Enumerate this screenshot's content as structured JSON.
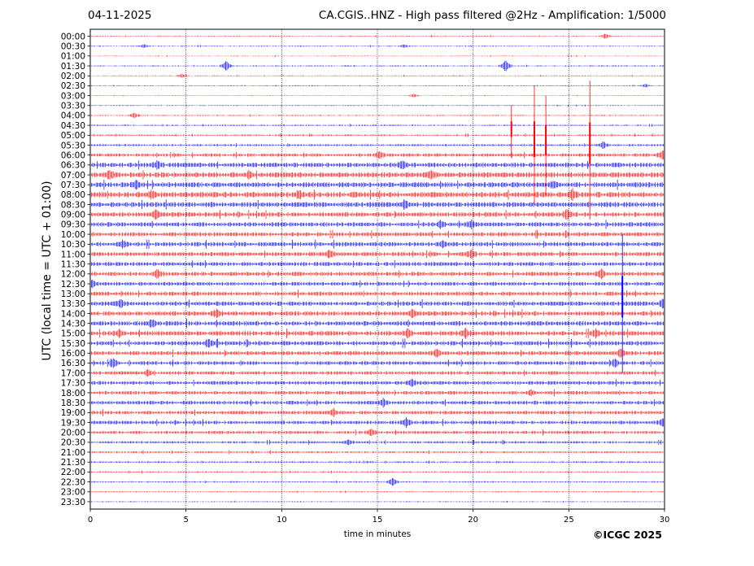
{
  "header": {
    "date": "04-11-2025",
    "title": "CA.CGIS..HNZ - High pass filtered @2Hz - Amplification: 1/5000"
  },
  "copyright": "©ICGC 2025",
  "chart_data": {
    "type": "line",
    "title": "CA.CGIS..HNZ - High pass filtered @2Hz - Amplification: 1/5000",
    "xlabel": "time in minutes",
    "ylabel": "UTC (local time = UTC + 01:00)",
    "xlim": [
      0,
      30
    ],
    "x_ticks": [
      0,
      5,
      10,
      15,
      20,
      25,
      30
    ],
    "y_ticks": [
      "00:00",
      "00:30",
      "01:00",
      "01:30",
      "02:00",
      "02:30",
      "03:00",
      "03:30",
      "04:00",
      "04:30",
      "05:00",
      "05:30",
      "06:00",
      "06:30",
      "07:00",
      "07:30",
      "08:00",
      "08:30",
      "09:00",
      "09:30",
      "10:00",
      "10:30",
      "11:00",
      "11:30",
      "12:00",
      "12:30",
      "13:00",
      "13:30",
      "14:00",
      "14:30",
      "15:00",
      "15:30",
      "16:00",
      "16:30",
      "17:00",
      "17:30",
      "18:00",
      "18:30",
      "19:00",
      "19:30",
      "20:00",
      "20:30",
      "21:00",
      "21:30",
      "22:00",
      "22:30",
      "23:00",
      "23:30"
    ],
    "grid_x": [
      5,
      10,
      15,
      20,
      25
    ],
    "colors": {
      "even_hour": "#ff0000",
      "half_hour": "#0000ff"
    },
    "noise_by_row": [
      0.4,
      0.4,
      0.3,
      0.5,
      0.4,
      0.4,
      0.3,
      0.4,
      0.5,
      0.6,
      0.7,
      0.9,
      1.4,
      2.0,
      2.3,
      2.2,
      2.4,
      2.2,
      2.0,
      1.9,
      1.8,
      1.9,
      1.8,
      1.7,
      1.8,
      1.6,
      1.7,
      1.9,
      1.9,
      2.0,
      2.0,
      1.9,
      1.8,
      1.6,
      1.5,
      1.6,
      1.5,
      1.6,
      1.5,
      1.5,
      1.3,
      1.0,
      0.8,
      0.7,
      0.6,
      0.6,
      0.5,
      0.4
    ],
    "events": [
      {
        "row": 0,
        "t": 26.9,
        "amp": 3
      },
      {
        "row": 1,
        "t": 2.8,
        "amp": 2
      },
      {
        "row": 1,
        "t": 16.4,
        "amp": 2
      },
      {
        "row": 3,
        "t": 7.1,
        "amp": 6
      },
      {
        "row": 3,
        "t": 21.7,
        "amp": 7
      },
      {
        "row": 4,
        "t": 4.8,
        "amp": 2
      },
      {
        "row": 5,
        "t": 29.0,
        "amp": 2
      },
      {
        "row": 6,
        "t": 16.9,
        "amp": 2
      },
      {
        "row": 8,
        "t": 2.3,
        "amp": 3
      },
      {
        "row": 11,
        "t": 26.8,
        "amp": 4
      },
      {
        "row": 12,
        "t": 15.1,
        "amp": 4
      },
      {
        "row": 12,
        "t": 29.9,
        "amp": 5
      },
      {
        "row": 13,
        "t": 3.5,
        "amp": 4
      },
      {
        "row": 13,
        "t": 16.3,
        "amp": 4
      },
      {
        "row": 14,
        "t": 1.0,
        "amp": 4
      },
      {
        "row": 14,
        "t": 8.3,
        "amp": 4
      },
      {
        "row": 14,
        "t": 17.8,
        "amp": 4
      },
      {
        "row": 15,
        "t": 2.4,
        "amp": 4
      },
      {
        "row": 15,
        "t": 24.2,
        "amp": 4
      },
      {
        "row": 16,
        "t": 3.2,
        "amp": 4
      },
      {
        "row": 16,
        "t": 10.9,
        "amp": 4
      },
      {
        "row": 16,
        "t": 25.2,
        "amp": 5
      },
      {
        "row": 17,
        "t": 16.4,
        "amp": 4
      },
      {
        "row": 18,
        "t": 3.4,
        "amp": 5
      },
      {
        "row": 18,
        "t": 24.9,
        "amp": 5
      },
      {
        "row": 19,
        "t": 18.3,
        "amp": 4
      },
      {
        "row": 19,
        "t": 19.9,
        "amp": 4
      },
      {
        "row": 21,
        "t": 1.7,
        "amp": 4
      },
      {
        "row": 21,
        "t": 18.4,
        "amp": 4
      },
      {
        "row": 22,
        "t": 12.5,
        "amp": 4
      },
      {
        "row": 22,
        "t": 19.9,
        "amp": 4
      },
      {
        "row": 24,
        "t": 3.5,
        "amp": 4
      },
      {
        "row": 24,
        "t": 26.7,
        "amp": 5
      },
      {
        "row": 25,
        "t": 0.1,
        "amp": 4
      },
      {
        "row": 27,
        "t": 1.6,
        "amp": 4
      },
      {
        "row": 27,
        "t": 29.9,
        "amp": 4
      },
      {
        "row": 28,
        "t": 6.6,
        "amp": 4
      },
      {
        "row": 28,
        "t": 16.8,
        "amp": 4
      },
      {
        "row": 29,
        "t": 3.2,
        "amp": 4
      },
      {
        "row": 30,
        "t": 1.5,
        "amp": 4
      },
      {
        "row": 30,
        "t": 16.6,
        "amp": 5
      },
      {
        "row": 30,
        "t": 19.6,
        "amp": 5
      },
      {
        "row": 30,
        "t": 26.4,
        "amp": 4
      },
      {
        "row": 31,
        "t": 6.2,
        "amp": 5
      },
      {
        "row": 32,
        "t": 18.1,
        "amp": 4
      },
      {
        "row": 32,
        "t": 27.7,
        "amp": 4
      },
      {
        "row": 33,
        "t": 1.2,
        "amp": 4
      },
      {
        "row": 33,
        "t": 27.4,
        "amp": 4
      },
      {
        "row": 34,
        "t": 3.0,
        "amp": 3
      },
      {
        "row": 35,
        "t": 16.8,
        "amp": 4
      },
      {
        "row": 36,
        "t": 23.0,
        "amp": 3
      },
      {
        "row": 37,
        "t": 15.3,
        "amp": 4
      },
      {
        "row": 38,
        "t": 12.7,
        "amp": 4
      },
      {
        "row": 39,
        "t": 16.5,
        "amp": 5
      },
      {
        "row": 39,
        "t": 29.9,
        "amp": 4
      },
      {
        "row": 40,
        "t": 14.7,
        "amp": 4
      },
      {
        "row": 41,
        "t": 13.5,
        "amp": 3
      },
      {
        "row": 45,
        "t": 15.8,
        "amp": 5
      }
    ],
    "spikes": [
      {
        "t": 22.0,
        "start_row": 7,
        "end_row": 12.3,
        "color": "#ff0000"
      },
      {
        "t": 23.2,
        "start_row": 5,
        "end_row": 17,
        "color": "#ff0000"
      },
      {
        "t": 23.8,
        "start_row": 6,
        "end_row": 16,
        "color": "#ff0000"
      },
      {
        "t": 26.1,
        "start_row": 4.5,
        "end_row": 18.5,
        "color": "#ff0000"
      },
      {
        "t": 27.8,
        "start_row": 20,
        "end_row": 34,
        "color": "#0000ff"
      }
    ]
  }
}
